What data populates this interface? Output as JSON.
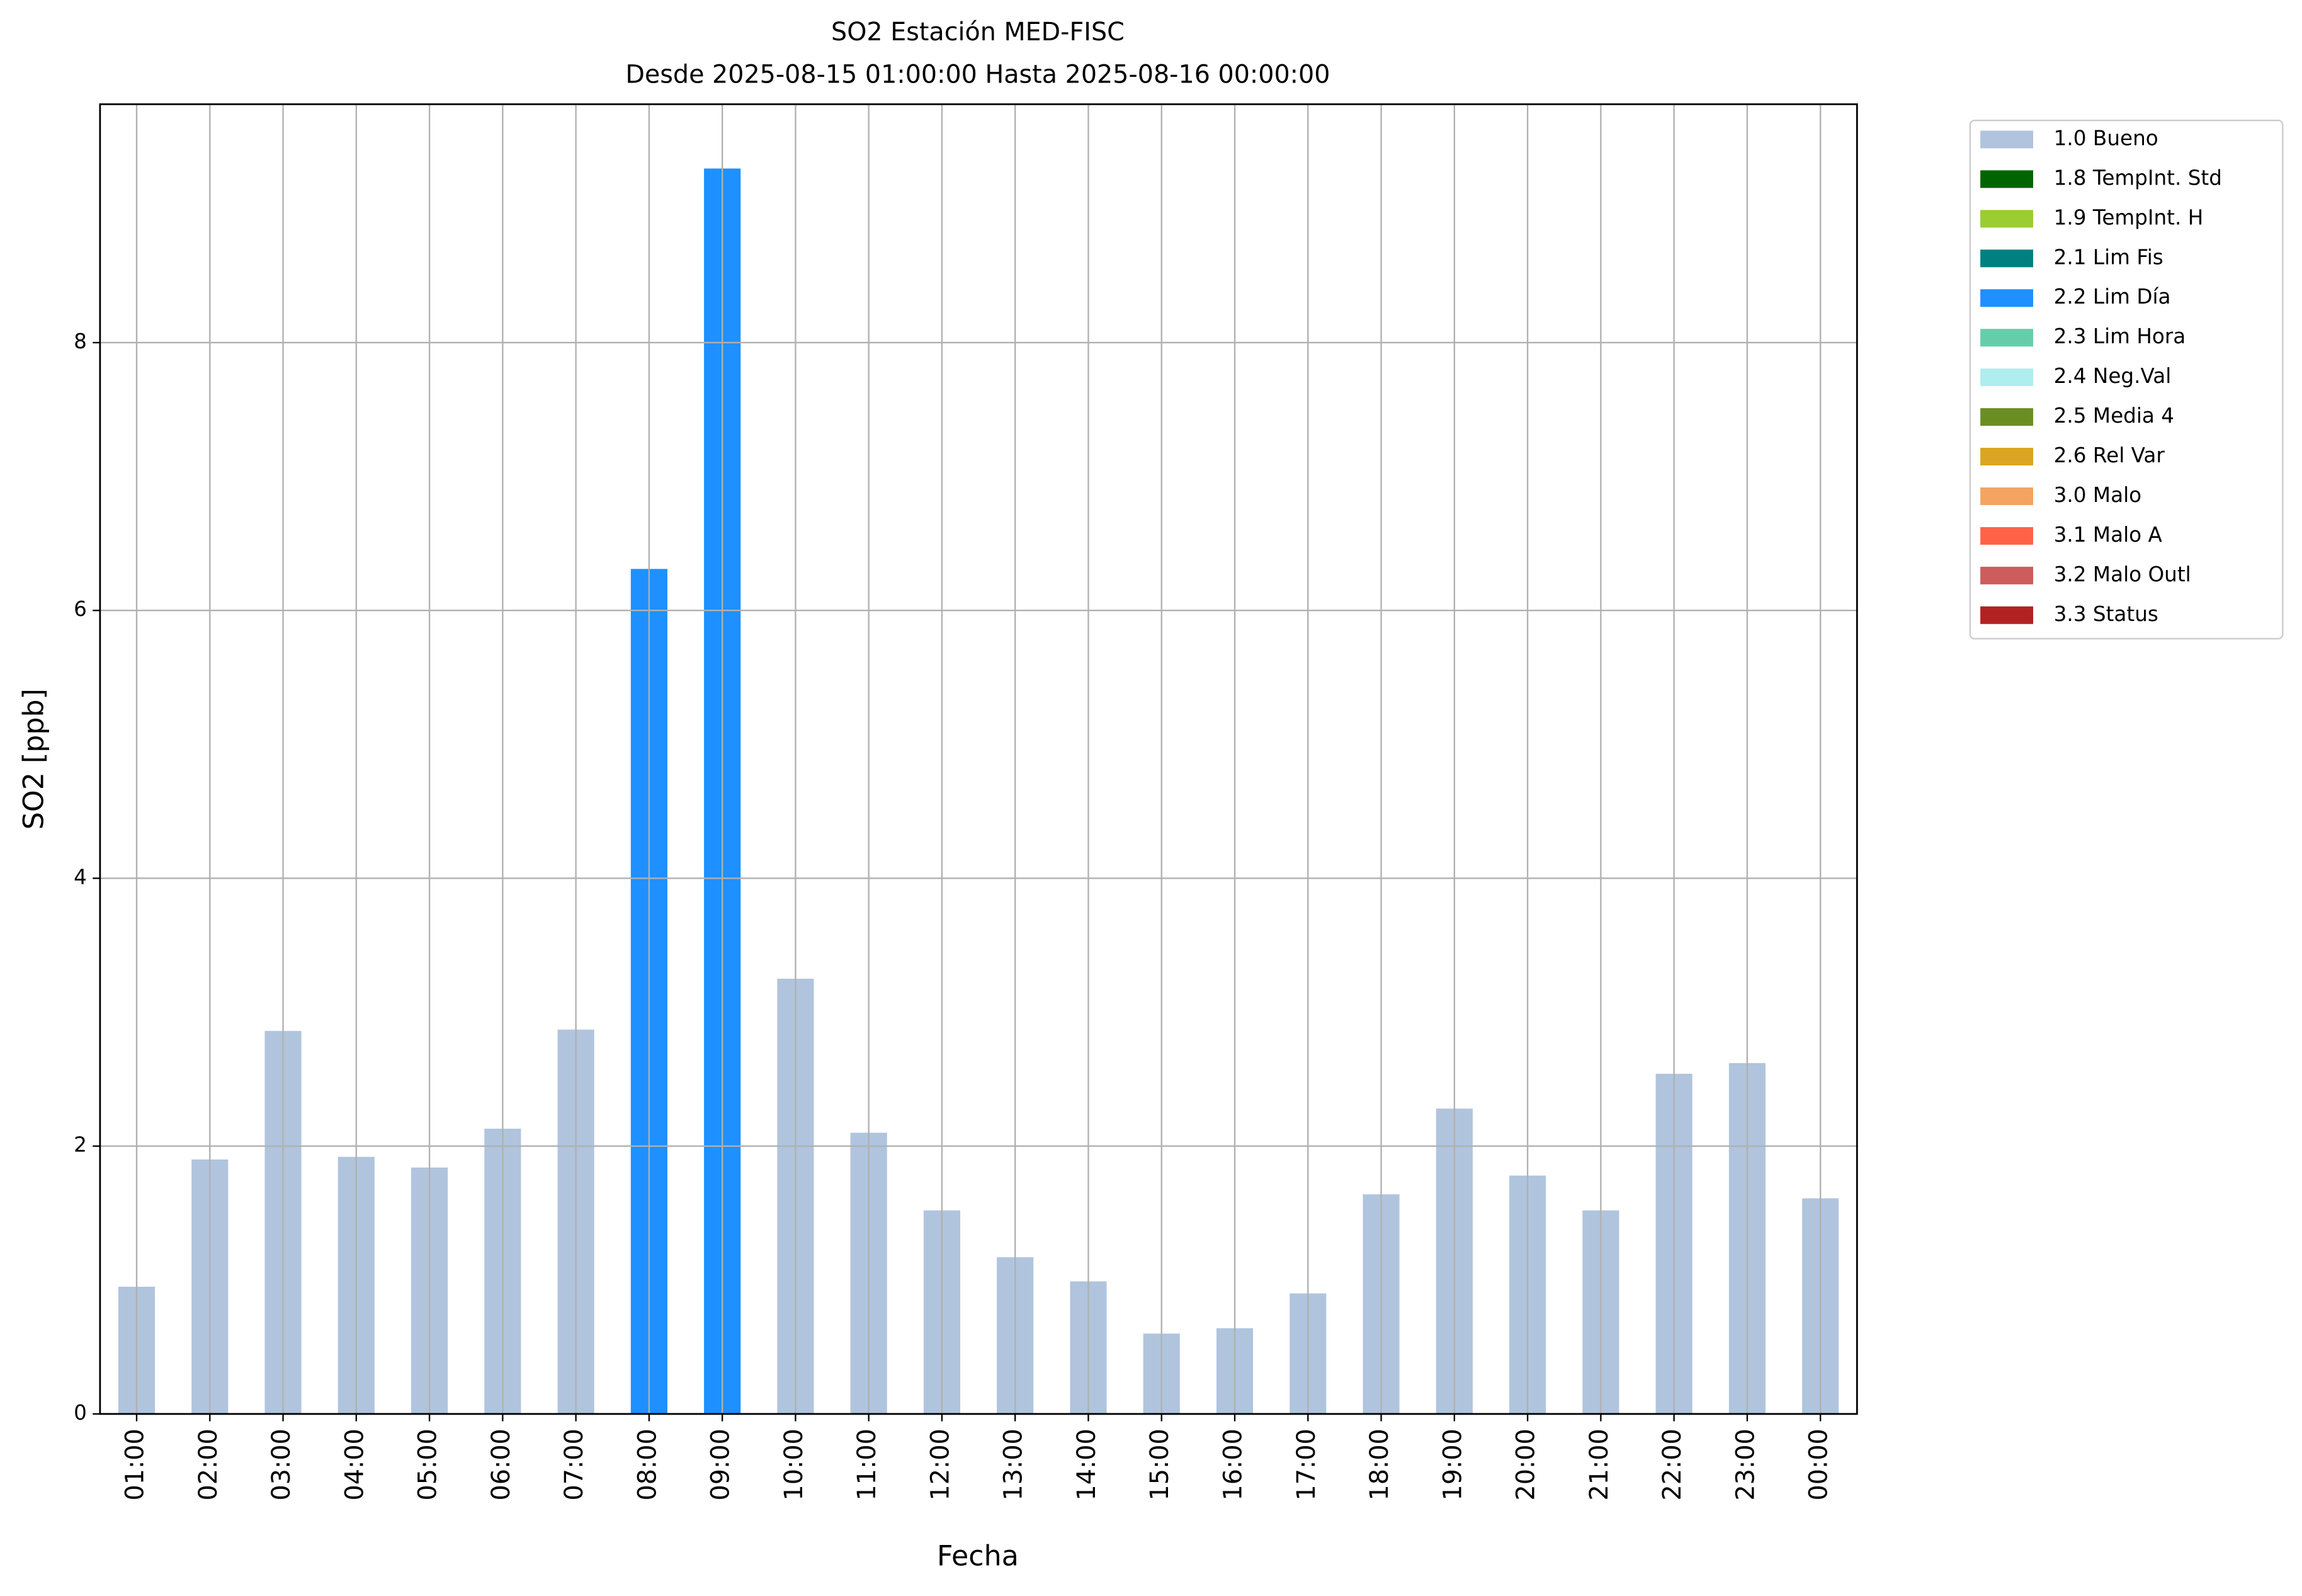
{
  "chart_data": {
    "type": "stacked_bar",
    "title": "SO2 Estación MED-FISC",
    "subtitle": "Desde 2025-08-15 01:00:00 Hasta 2025-08-16 00:00:00",
    "x_label": "Fecha",
    "y_label": "SO2 [ppb]",
    "categories": [
      "01:00",
      "02:00",
      "03:00",
      "04:00",
      "05:00",
      "06:00",
      "07:00",
      "08:00",
      "09:00",
      "10:00",
      "11:00",
      "12:00",
      "13:00",
      "14:00",
      "15:00",
      "16:00",
      "17:00",
      "18:00",
      "19:00",
      "20:00",
      "21:00",
      "22:00",
      "23:00",
      "00:00"
    ],
    "series": [
      {
        "name": "1.0 Bueno",
        "color": "#b0c4de",
        "values": [
          0.95,
          1.9,
          2.86,
          1.92,
          1.84,
          2.13,
          2.87,
          null,
          null,
          3.25,
          2.1,
          1.52,
          1.17,
          0.99,
          0.6,
          0.64,
          0.9,
          1.64,
          2.28,
          1.78,
          1.52,
          2.54,
          2.62,
          1.61
        ]
      },
      {
        "name": "1.8 TempInt. Std",
        "color": "#006400",
        "values": [
          null,
          null,
          null,
          null,
          null,
          null,
          null,
          null,
          null,
          null,
          null,
          null,
          null,
          null,
          null,
          null,
          null,
          null,
          null,
          null,
          null,
          null,
          null,
          null
        ]
      },
      {
        "name": "1.9 TempInt. H",
        "color": "#9acd32",
        "values": [
          null,
          null,
          null,
          null,
          null,
          null,
          null,
          null,
          null,
          null,
          null,
          null,
          null,
          null,
          null,
          null,
          null,
          null,
          null,
          null,
          null,
          null,
          null,
          null
        ]
      },
      {
        "name": "2.1 Lim Fis",
        "color": "#008080",
        "values": [
          null,
          null,
          null,
          null,
          null,
          null,
          null,
          null,
          null,
          null,
          null,
          null,
          null,
          null,
          null,
          null,
          null,
          null,
          null,
          null,
          null,
          null,
          null,
          null
        ]
      },
      {
        "name": "2.2 Lim Día",
        "color": "#1e90ff",
        "values": [
          null,
          null,
          null,
          null,
          null,
          null,
          null,
          6.31,
          9.3,
          null,
          null,
          null,
          null,
          null,
          null,
          null,
          null,
          null,
          null,
          null,
          null,
          null,
          null,
          null
        ]
      },
      {
        "name": "2.3 Lim Hora",
        "color": "#66cdaa",
        "values": [
          null,
          null,
          null,
          null,
          null,
          null,
          null,
          null,
          null,
          null,
          null,
          null,
          null,
          null,
          null,
          null,
          null,
          null,
          null,
          null,
          null,
          null,
          null,
          null
        ]
      },
      {
        "name": "2.4 Neg.Val",
        "color": "#afeeee",
        "values": [
          null,
          null,
          null,
          null,
          null,
          null,
          null,
          null,
          null,
          null,
          null,
          null,
          null,
          null,
          null,
          null,
          null,
          null,
          null,
          null,
          null,
          null,
          null,
          null
        ]
      },
      {
        "name": "2.5 Media 4",
        "color": "#6b8e23",
        "values": [
          null,
          null,
          null,
          null,
          null,
          null,
          null,
          null,
          null,
          null,
          null,
          null,
          null,
          null,
          null,
          null,
          null,
          null,
          null,
          null,
          null,
          null,
          null,
          null
        ]
      },
      {
        "name": "2.6 Rel Var",
        "color": "#daa520",
        "values": [
          null,
          null,
          null,
          null,
          null,
          null,
          null,
          null,
          null,
          null,
          null,
          null,
          null,
          null,
          null,
          null,
          null,
          null,
          null,
          null,
          null,
          null,
          null,
          null
        ]
      },
      {
        "name": "3.0 Malo",
        "color": "#f4a460",
        "values": [
          null,
          null,
          null,
          null,
          null,
          null,
          null,
          null,
          null,
          null,
          null,
          null,
          null,
          null,
          null,
          null,
          null,
          null,
          null,
          null,
          null,
          null,
          null,
          null
        ]
      },
      {
        "name": "3.1 Malo A",
        "color": "#ff6347",
        "values": [
          null,
          null,
          null,
          null,
          null,
          null,
          null,
          null,
          null,
          null,
          null,
          null,
          null,
          null,
          null,
          null,
          null,
          null,
          null,
          null,
          null,
          null,
          null,
          null
        ]
      },
      {
        "name": "3.2 Malo Outl",
        "color": "#cd5c5c",
        "values": [
          null,
          null,
          null,
          null,
          null,
          null,
          null,
          null,
          null,
          null,
          null,
          null,
          null,
          null,
          null,
          null,
          null,
          null,
          null,
          null,
          null,
          null,
          null,
          null
        ]
      },
      {
        "name": "3.3 Status",
        "color": "#b22222",
        "values": [
          null,
          null,
          null,
          null,
          null,
          null,
          null,
          null,
          null,
          null,
          null,
          null,
          null,
          null,
          null,
          null,
          null,
          null,
          null,
          null,
          null,
          null,
          null,
          null
        ]
      }
    ],
    "ylim": [
      0,
      9.78
    ],
    "yticks": [
      0,
      2,
      4,
      6,
      8
    ],
    "grid": true,
    "legend": "outside right"
  }
}
